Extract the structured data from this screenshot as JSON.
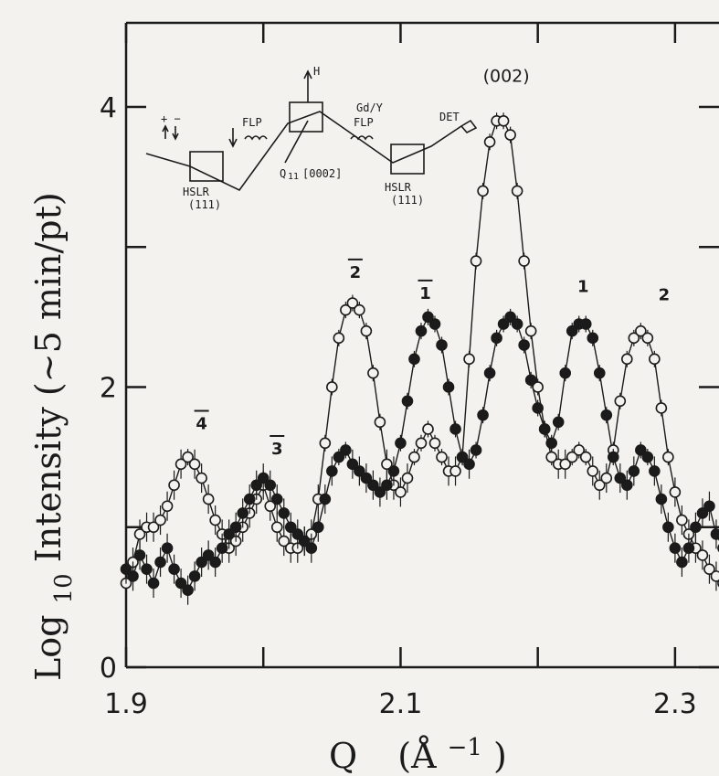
{
  "chart_data": {
    "type": "scatter",
    "xlabel_symbol": "Q",
    "xlabel_unit": "(Å",
    "xlabel_unit_exp": "−1",
    "xlabel_unit_close": ")",
    "ylabel_main": "Log",
    "ylabel_sub": "10",
    "ylabel_rest": " Intensity  (~5 min/pt)",
    "xlim": [
      1.9,
      2.35
    ],
    "ylim": [
      0,
      4.6
    ],
    "x_ticks": [
      1.9,
      2.0,
      2.1,
      2.2,
      2.3
    ],
    "x_tick_labels": [
      {
        "value": 1.9,
        "label": "1.9"
      },
      {
        "value": 2.1,
        "label": "2.1"
      },
      {
        "value": 2.3,
        "label": "2.3"
      }
    ],
    "y_ticks": [
      0,
      1,
      2,
      3,
      4
    ],
    "y_tick_labels": [
      {
        "value": 0,
        "label": "0"
      },
      {
        "value": 2,
        "label": "2"
      },
      {
        "value": 4,
        "label": "4"
      }
    ],
    "grid": false,
    "series": [
      {
        "marker": "open-circle",
        "x": [
          1.9,
          1.905,
          1.91,
          1.915,
          1.92,
          1.925,
          1.93,
          1.935,
          1.94,
          1.945,
          1.95,
          1.955,
          1.96,
          1.965,
          1.97,
          1.975,
          1.98,
          1.985,
          1.99,
          1.995,
          2.0,
          2.005,
          2.01,
          2.015,
          2.02,
          2.025,
          2.03,
          2.035,
          2.04,
          2.045,
          2.05,
          2.055,
          2.06,
          2.065,
          2.07,
          2.075,
          2.08,
          2.085,
          2.09,
          2.095,
          2.1,
          2.105,
          2.11,
          2.115,
          2.12,
          2.125,
          2.13,
          2.135,
          2.14,
          2.145,
          2.15,
          2.155,
          2.16,
          2.165,
          2.17,
          2.175,
          2.18,
          2.185,
          2.19,
          2.195,
          2.2,
          2.205,
          2.21,
          2.215,
          2.22,
          2.225,
          2.23,
          2.235,
          2.24,
          2.245,
          2.25,
          2.255,
          2.26,
          2.265,
          2.27,
          2.275,
          2.28,
          2.285,
          2.29,
          2.295,
          2.3,
          2.305,
          2.31,
          2.315,
          2.32,
          2.325,
          2.33,
          2.335,
          2.34,
          2.345
        ],
        "y": [
          0.6,
          0.75,
          0.95,
          1.0,
          1.0,
          1.05,
          1.15,
          1.3,
          1.45,
          1.5,
          1.45,
          1.35,
          1.2,
          1.05,
          0.95,
          0.85,
          0.9,
          1.0,
          1.1,
          1.2,
          1.3,
          1.15,
          1.0,
          0.9,
          0.85,
          0.85,
          0.9,
          0.95,
          1.2,
          1.6,
          2.0,
          2.35,
          2.55,
          2.6,
          2.55,
          2.4,
          2.1,
          1.75,
          1.45,
          1.3,
          1.25,
          1.35,
          1.5,
          1.6,
          1.7,
          1.6,
          1.5,
          1.4,
          1.4,
          1.5,
          2.2,
          2.9,
          3.4,
          3.75,
          3.9,
          3.9,
          3.8,
          3.4,
          2.9,
          2.4,
          2.0,
          1.7,
          1.5,
          1.45,
          1.45,
          1.5,
          1.55,
          1.5,
          1.4,
          1.3,
          1.35,
          1.55,
          1.9,
          2.2,
          2.35,
          2.4,
          2.35,
          2.2,
          1.85,
          1.5,
          1.25,
          1.05,
          0.95,
          0.85,
          0.8,
          0.7,
          0.65,
          0.6,
          0.55,
          0.5
        ]
      },
      {
        "marker": "filled-circle",
        "x": [
          1.9,
          1.905,
          1.91,
          1.915,
          1.92,
          1.925,
          1.93,
          1.935,
          1.94,
          1.945,
          1.95,
          1.955,
          1.96,
          1.965,
          1.97,
          1.975,
          1.98,
          1.985,
          1.99,
          1.995,
          2.0,
          2.005,
          2.01,
          2.015,
          2.02,
          2.025,
          2.03,
          2.035,
          2.04,
          2.045,
          2.05,
          2.055,
          2.06,
          2.065,
          2.07,
          2.075,
          2.08,
          2.085,
          2.09,
          2.095,
          2.1,
          2.105,
          2.11,
          2.115,
          2.12,
          2.125,
          2.13,
          2.135,
          2.14,
          2.145,
          2.15,
          2.155,
          2.16,
          2.165,
          2.17,
          2.175,
          2.18,
          2.185,
          2.19,
          2.195,
          2.2,
          2.205,
          2.21,
          2.215,
          2.22,
          2.225,
          2.23,
          2.235,
          2.24,
          2.245,
          2.25,
          2.255,
          2.26,
          2.265,
          2.27,
          2.275,
          2.28,
          2.285,
          2.29,
          2.295,
          2.3,
          2.305,
          2.31,
          2.315,
          2.32,
          2.325,
          2.33,
          2.335,
          2.34,
          2.345
        ],
        "y": [
          0.7,
          0.65,
          0.8,
          0.7,
          0.6,
          0.75,
          0.85,
          0.7,
          0.6,
          0.55,
          0.65,
          0.75,
          0.8,
          0.75,
          0.85,
          0.95,
          1.0,
          1.1,
          1.2,
          1.3,
          1.35,
          1.3,
          1.2,
          1.1,
          1.0,
          0.95,
          0.9,
          0.85,
          1.0,
          1.2,
          1.4,
          1.5,
          1.55,
          1.45,
          1.4,
          1.35,
          1.3,
          1.25,
          1.3,
          1.4,
          1.6,
          1.9,
          2.2,
          2.4,
          2.5,
          2.45,
          2.3,
          2.0,
          1.7,
          1.5,
          1.45,
          1.55,
          1.8,
          2.1,
          2.35,
          2.45,
          2.5,
          2.45,
          2.3,
          2.05,
          1.85,
          1.7,
          1.6,
          1.75,
          2.1,
          2.4,
          2.45,
          2.45,
          2.35,
          2.1,
          1.8,
          1.5,
          1.35,
          1.3,
          1.4,
          1.55,
          1.5,
          1.4,
          1.2,
          1.0,
          0.85,
          0.75,
          0.85,
          1.0,
          1.1,
          1.15,
          0.95,
          0.85,
          0.75,
          0.7
        ]
      }
    ],
    "annotations": [
      {
        "text": "4",
        "bar": true,
        "x": 1.955,
        "y": 1.7
      },
      {
        "text": "3",
        "bar": true,
        "x": 2.01,
        "y": 1.52
      },
      {
        "text": "2",
        "bar": true,
        "x": 2.067,
        "y": 2.78
      },
      {
        "text": "1",
        "bar": true,
        "x": 2.118,
        "y": 2.63
      },
      {
        "text": "(002)",
        "bar": false,
        "x": 2.177,
        "y": 4.18
      },
      {
        "text": "1",
        "bar": false,
        "x": 2.233,
        "y": 2.68
      },
      {
        "text": "2",
        "bar": false,
        "x": 2.292,
        "y": 2.62
      }
    ],
    "inset": {
      "labels": {
        "spin": "+ −",
        "flp_left": "FLP",
        "gdy": "Gd/Y",
        "flp_right": "FLP",
        "det": "DET",
        "h_field": "H",
        "q_vec": "Q",
        "q_sub": "11",
        "q_index": "[0002]",
        "hslr_left": "HSLR",
        "hslr_left_idx": "(111)",
        "hslr_right": "HSLR",
        "hslr_right_idx": "(111)"
      }
    }
  }
}
